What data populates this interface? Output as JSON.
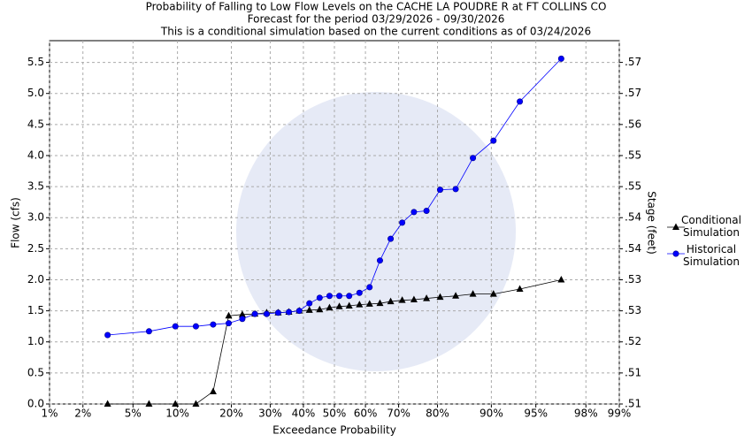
{
  "chart_data": {
    "type": "line",
    "title": "Probability of Falling to Low Flow Levels on the CACHE LA POUDRE R at FT COLLINS CO",
    "subtitles": [
      "Forecast for the period 03/29/2026 - 09/30/2026",
      "This is a conditional simulation based on the current conditions as of 03/24/2026"
    ],
    "xlabel": "Exceedance Probability",
    "ylabel": "Flow (cfs)",
    "y2label": "Stage (feet)",
    "xscale": "probability",
    "grid": true,
    "legend": "right",
    "x": [
      3.2,
      6.5,
      9.7,
      12.9,
      16.1,
      19.4,
      22.6,
      25.8,
      29.0,
      32.3,
      35.5,
      38.7,
      41.9,
      45.2,
      48.4,
      51.6,
      54.8,
      58.1,
      61.3,
      64.5,
      67.7,
      71.0,
      74.2,
      77.4,
      80.6,
      83.9,
      87.1,
      90.3,
      93.5,
      96.8
    ],
    "series": [
      {
        "name": "Conditional Simulation",
        "color": "#000000",
        "marker": "triangle",
        "values": [
          0,
          0,
          0,
          0,
          0.2,
          1.42,
          1.44,
          1.45,
          1.47,
          1.47,
          1.48,
          1.5,
          1.51,
          1.52,
          1.55,
          1.57,
          1.58,
          1.6,
          1.61,
          1.62,
          1.65,
          1.67,
          1.68,
          1.7,
          1.72,
          1.74,
          1.77,
          1.77,
          1.85,
          2.0
        ]
      },
      {
        "name": "Historical Simulation",
        "color": "#0000ff",
        "marker": "circle",
        "values": [
          1.11,
          1.17,
          1.25,
          1.25,
          1.28,
          1.3,
          1.37,
          1.45,
          1.45,
          1.47,
          1.48,
          1.5,
          1.62,
          1.71,
          1.74,
          1.74,
          1.74,
          1.79,
          1.88,
          2.31,
          2.66,
          2.92,
          3.09,
          3.11,
          3.45,
          3.46,
          3.96,
          4.24,
          4.87,
          5.56
        ]
      }
    ],
    "xlim": [
      1,
      99
    ],
    "xticks": [
      {
        "value": 1,
        "label": "1%"
      },
      {
        "value": 2,
        "label": "2%"
      },
      {
        "value": 5,
        "label": "5%"
      },
      {
        "value": 10,
        "label": "10%"
      },
      {
        "value": 20,
        "label": "20%"
      },
      {
        "value": 30,
        "label": "30%"
      },
      {
        "value": 40,
        "label": "40%"
      },
      {
        "value": 50,
        "label": "50%"
      },
      {
        "value": 60,
        "label": "60%"
      },
      {
        "value": 70,
        "label": "70%"
      },
      {
        "value": 80,
        "label": "80%"
      },
      {
        "value": 90,
        "label": "90%"
      },
      {
        "value": 95,
        "label": "95%"
      },
      {
        "value": 98,
        "label": "98%"
      },
      {
        "value": 99,
        "label": "99%"
      }
    ],
    "ylim": [
      0,
      5.85
    ],
    "yticks": [
      {
        "value": 0,
        "label": "0.0"
      },
      {
        "value": 0.5,
        "label": "0.5"
      },
      {
        "value": 1,
        "label": "1.0"
      },
      {
        "value": 1.5,
        "label": "1.5"
      },
      {
        "value": 2,
        "label": "2.0"
      },
      {
        "value": 2.5,
        "label": "2.5"
      },
      {
        "value": 3,
        "label": "3.0"
      },
      {
        "value": 3.5,
        "label": "3.5"
      },
      {
        "value": 4,
        "label": "4.0"
      },
      {
        "value": 4.5,
        "label": "4.5"
      },
      {
        "value": 5,
        "label": "5.0"
      },
      {
        "value": 5.5,
        "label": "5.5"
      }
    ],
    "y2lim": [
      0.508,
      0.57586
    ],
    "y2ticks": [
      {
        "value": 0.508,
        "label": ".51"
      },
      {
        "value": 0.5138,
        "label": ".51"
      },
      {
        "value": 0.5196,
        "label": ".52"
      },
      {
        "value": 0.5254,
        "label": ".53"
      },
      {
        "value": 0.5312,
        "label": ".53"
      },
      {
        "value": 0.537,
        "label": ".54"
      },
      {
        "value": 0.5428,
        "label": ".54"
      },
      {
        "value": 0.5486,
        "label": ".55"
      },
      {
        "value": 0.5544,
        "label": ".55"
      },
      {
        "value": 0.5602,
        "label": ".56"
      },
      {
        "value": 0.566,
        "label": ".57"
      },
      {
        "value": 0.5718,
        "label": ".57"
      }
    ]
  }
}
